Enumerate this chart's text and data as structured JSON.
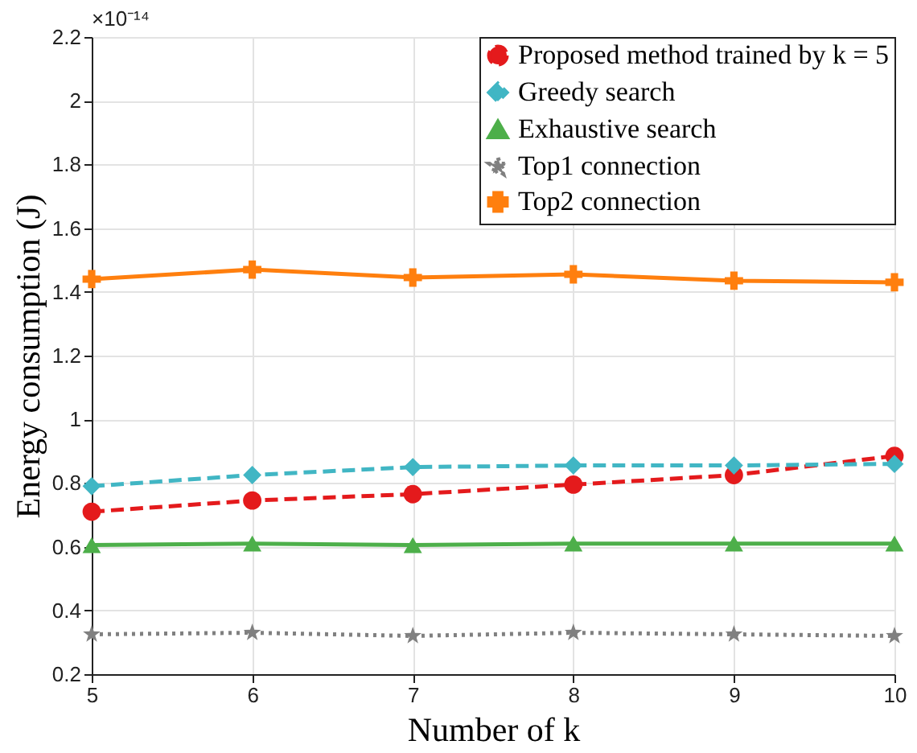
{
  "chart_data": {
    "type": "line",
    "xlabel": "Number of k",
    "ylabel": "Energy consumption (J)",
    "annotations": [
      "×10⁻¹⁴"
    ],
    "x": [
      5,
      6,
      7,
      8,
      9,
      10
    ],
    "xlim": [
      5,
      10
    ],
    "xticks": [
      5,
      6,
      7,
      8,
      9,
      10
    ],
    "ylim": [
      0.2,
      2.2
    ],
    "yticks": [
      0.2,
      0.4,
      0.6,
      0.8,
      1,
      1.2,
      1.4,
      1.6,
      1.8,
      2,
      2.2
    ],
    "grid": true,
    "legend": "top right",
    "series": [
      {
        "name": "Proposed method trained by k = 5",
        "color": "#e41a1c",
        "marker": "circle",
        "line_style": "dashed",
        "values": [
          0.71,
          0.745,
          0.765,
          0.795,
          0.825,
          0.885
        ]
      },
      {
        "name": "Greedy search",
        "color": "#41b6c4",
        "marker": "diamond",
        "line_style": "dashed",
        "values": [
          0.79,
          0.825,
          0.85,
          0.855,
          0.855,
          0.86
        ]
      },
      {
        "name": "Exhaustive search",
        "color": "#4daf4a",
        "marker": "triangle",
        "line_style": "solid",
        "values": [
          0.605,
          0.61,
          0.605,
          0.61,
          0.61,
          0.61
        ]
      },
      {
        "name": "Top1 connection",
        "color": "#808080",
        "marker": "star",
        "line_style": "dotted",
        "values": [
          0.325,
          0.33,
          0.32,
          0.33,
          0.325,
          0.32
        ]
      },
      {
        "name": "Top2 connection",
        "color": "#ff7f0e",
        "marker": "cross",
        "line_style": "solid",
        "values": [
          1.44,
          1.47,
          1.445,
          1.455,
          1.435,
          1.43
        ]
      }
    ]
  }
}
